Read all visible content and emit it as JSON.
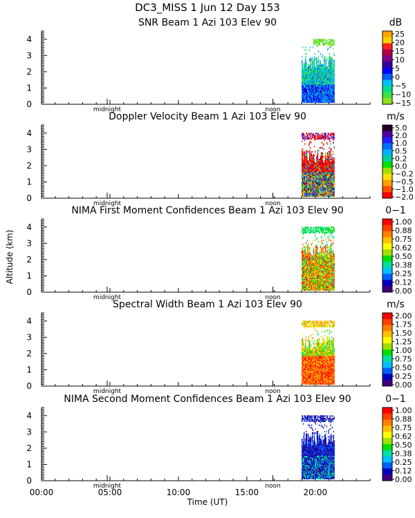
{
  "header": {
    "line1": "DC3_MISS    1 Jun 12 Day 153"
  },
  "axes": {
    "ylabel": "Altitude (km)",
    "xlabel": "Time (UT)",
    "x_ticks": [
      "00:00",
      "05:00",
      "10:00",
      "15:00",
      "20:00"
    ],
    "x_tick_values": [
      0,
      5,
      10,
      15,
      20
    ],
    "x_range": [
      0,
      24
    ],
    "y_ticks": [
      "0",
      "1",
      "2",
      "3",
      "4"
    ],
    "y_tick_values": [
      0,
      1,
      2,
      3,
      4
    ],
    "y_range": [
      0,
      4.5
    ],
    "marker_midnight": "midnight",
    "marker_noon": "noon",
    "marker_midnight_hour": 4.8,
    "marker_noon_hour": 16.9
  },
  "chart_data": [
    {
      "type": "heatmap",
      "title": "SNR Beam 1 Azi 103 Elev 90",
      "units": "dB",
      "colorbar_labels": [
        "25",
        "20",
        "15",
        "10",
        "5",
        "0",
        "−5",
        "−10",
        "−15"
      ],
      "colorbar_colors": [
        "#ffa500",
        "#ffd000",
        "#ff2020",
        "#b00040",
        "#800080",
        "#3000a0",
        "#0000ff",
        "#0060ff",
        "#00c0ff",
        "#00e090",
        "#40e040",
        "#90e020"
      ],
      "data_time_range": [
        19.0,
        21.4
      ],
      "data_altitude_range": [
        0.1,
        4.0
      ],
      "pattern": "snr"
    },
    {
      "type": "heatmap",
      "title": "Doppler Velocity Beam 1 Azi 103 Elev 90",
      "units": "m/s",
      "colorbar_labels": [
        "5.0",
        "2.0",
        "1.0",
        "0.5",
        "0.2",
        "0.0",
        "−0.2",
        "−0.5",
        "−1.0",
        "−2.0"
      ],
      "colorbar_colors": [
        "#200020",
        "#5000a0",
        "#2020ff",
        "#0070ff",
        "#00b0ff",
        "#00d0a0",
        "#00e000",
        "#a0e000",
        "#ffe000",
        "#ffa000",
        "#ff5000",
        "#ff0000"
      ],
      "data_time_range": [
        19.0,
        21.4
      ],
      "data_altitude_range": [
        0.1,
        4.0
      ],
      "pattern": "doppler"
    },
    {
      "type": "heatmap",
      "title": "NIMA First Moment Confidences Beam 1 Azi 103 Elev 90",
      "units": "0−1",
      "colorbar_labels": [
        "1.00",
        "0.88",
        "0.75",
        "0.62",
        "0.50",
        "0.38",
        "0.25",
        "0.12",
        "0.00"
      ],
      "colorbar_colors": [
        "#ff0000",
        "#ff4000",
        "#ff8000",
        "#ffc000",
        "#ffff00",
        "#a0e000",
        "#00e000",
        "#00e0a0",
        "#00c0ff",
        "#0060ff",
        "#0000c0",
        "#400080"
      ],
      "data_time_range": [
        19.0,
        21.4
      ],
      "data_altitude_range": [
        0.1,
        4.0
      ],
      "pattern": "nima1"
    },
    {
      "type": "heatmap",
      "title": "Spectral Width Beam 1 Azi 103 Elev 90",
      "units": "m/s",
      "colorbar_labels": [
        "2.00",
        "1.75",
        "1.50",
        "1.25",
        "1.00",
        "0.75",
        "0.50",
        "0.25",
        "0.00"
      ],
      "colorbar_colors": [
        "#ff0000",
        "#ff4000",
        "#ff8000",
        "#ffc000",
        "#ffff00",
        "#a0e000",
        "#00e000",
        "#00e0a0",
        "#00c0ff",
        "#0060ff",
        "#0000c0",
        "#400080"
      ],
      "data_time_range": [
        19.0,
        21.4
      ],
      "data_altitude_range": [
        0.1,
        4.0
      ],
      "pattern": "width"
    },
    {
      "type": "heatmap",
      "title": "NIMA Second Moment Confidences Beam 1 Azi 103 Elev 90",
      "units": "0−1",
      "colorbar_labels": [
        "1.00",
        "0.88",
        "0.75",
        "0.62",
        "0.50",
        "0.38",
        "0.25",
        "0.12",
        "0.00"
      ],
      "colorbar_colors": [
        "#ff0000",
        "#ff4000",
        "#ff8000",
        "#ffc000",
        "#ffff00",
        "#a0e000",
        "#00e000",
        "#00e0a0",
        "#00c0ff",
        "#0060ff",
        "#0000c0",
        "#400080"
      ],
      "data_time_range": [
        19.0,
        21.4
      ],
      "data_altitude_range": [
        0.1,
        4.0
      ],
      "pattern": "nima2"
    }
  ]
}
